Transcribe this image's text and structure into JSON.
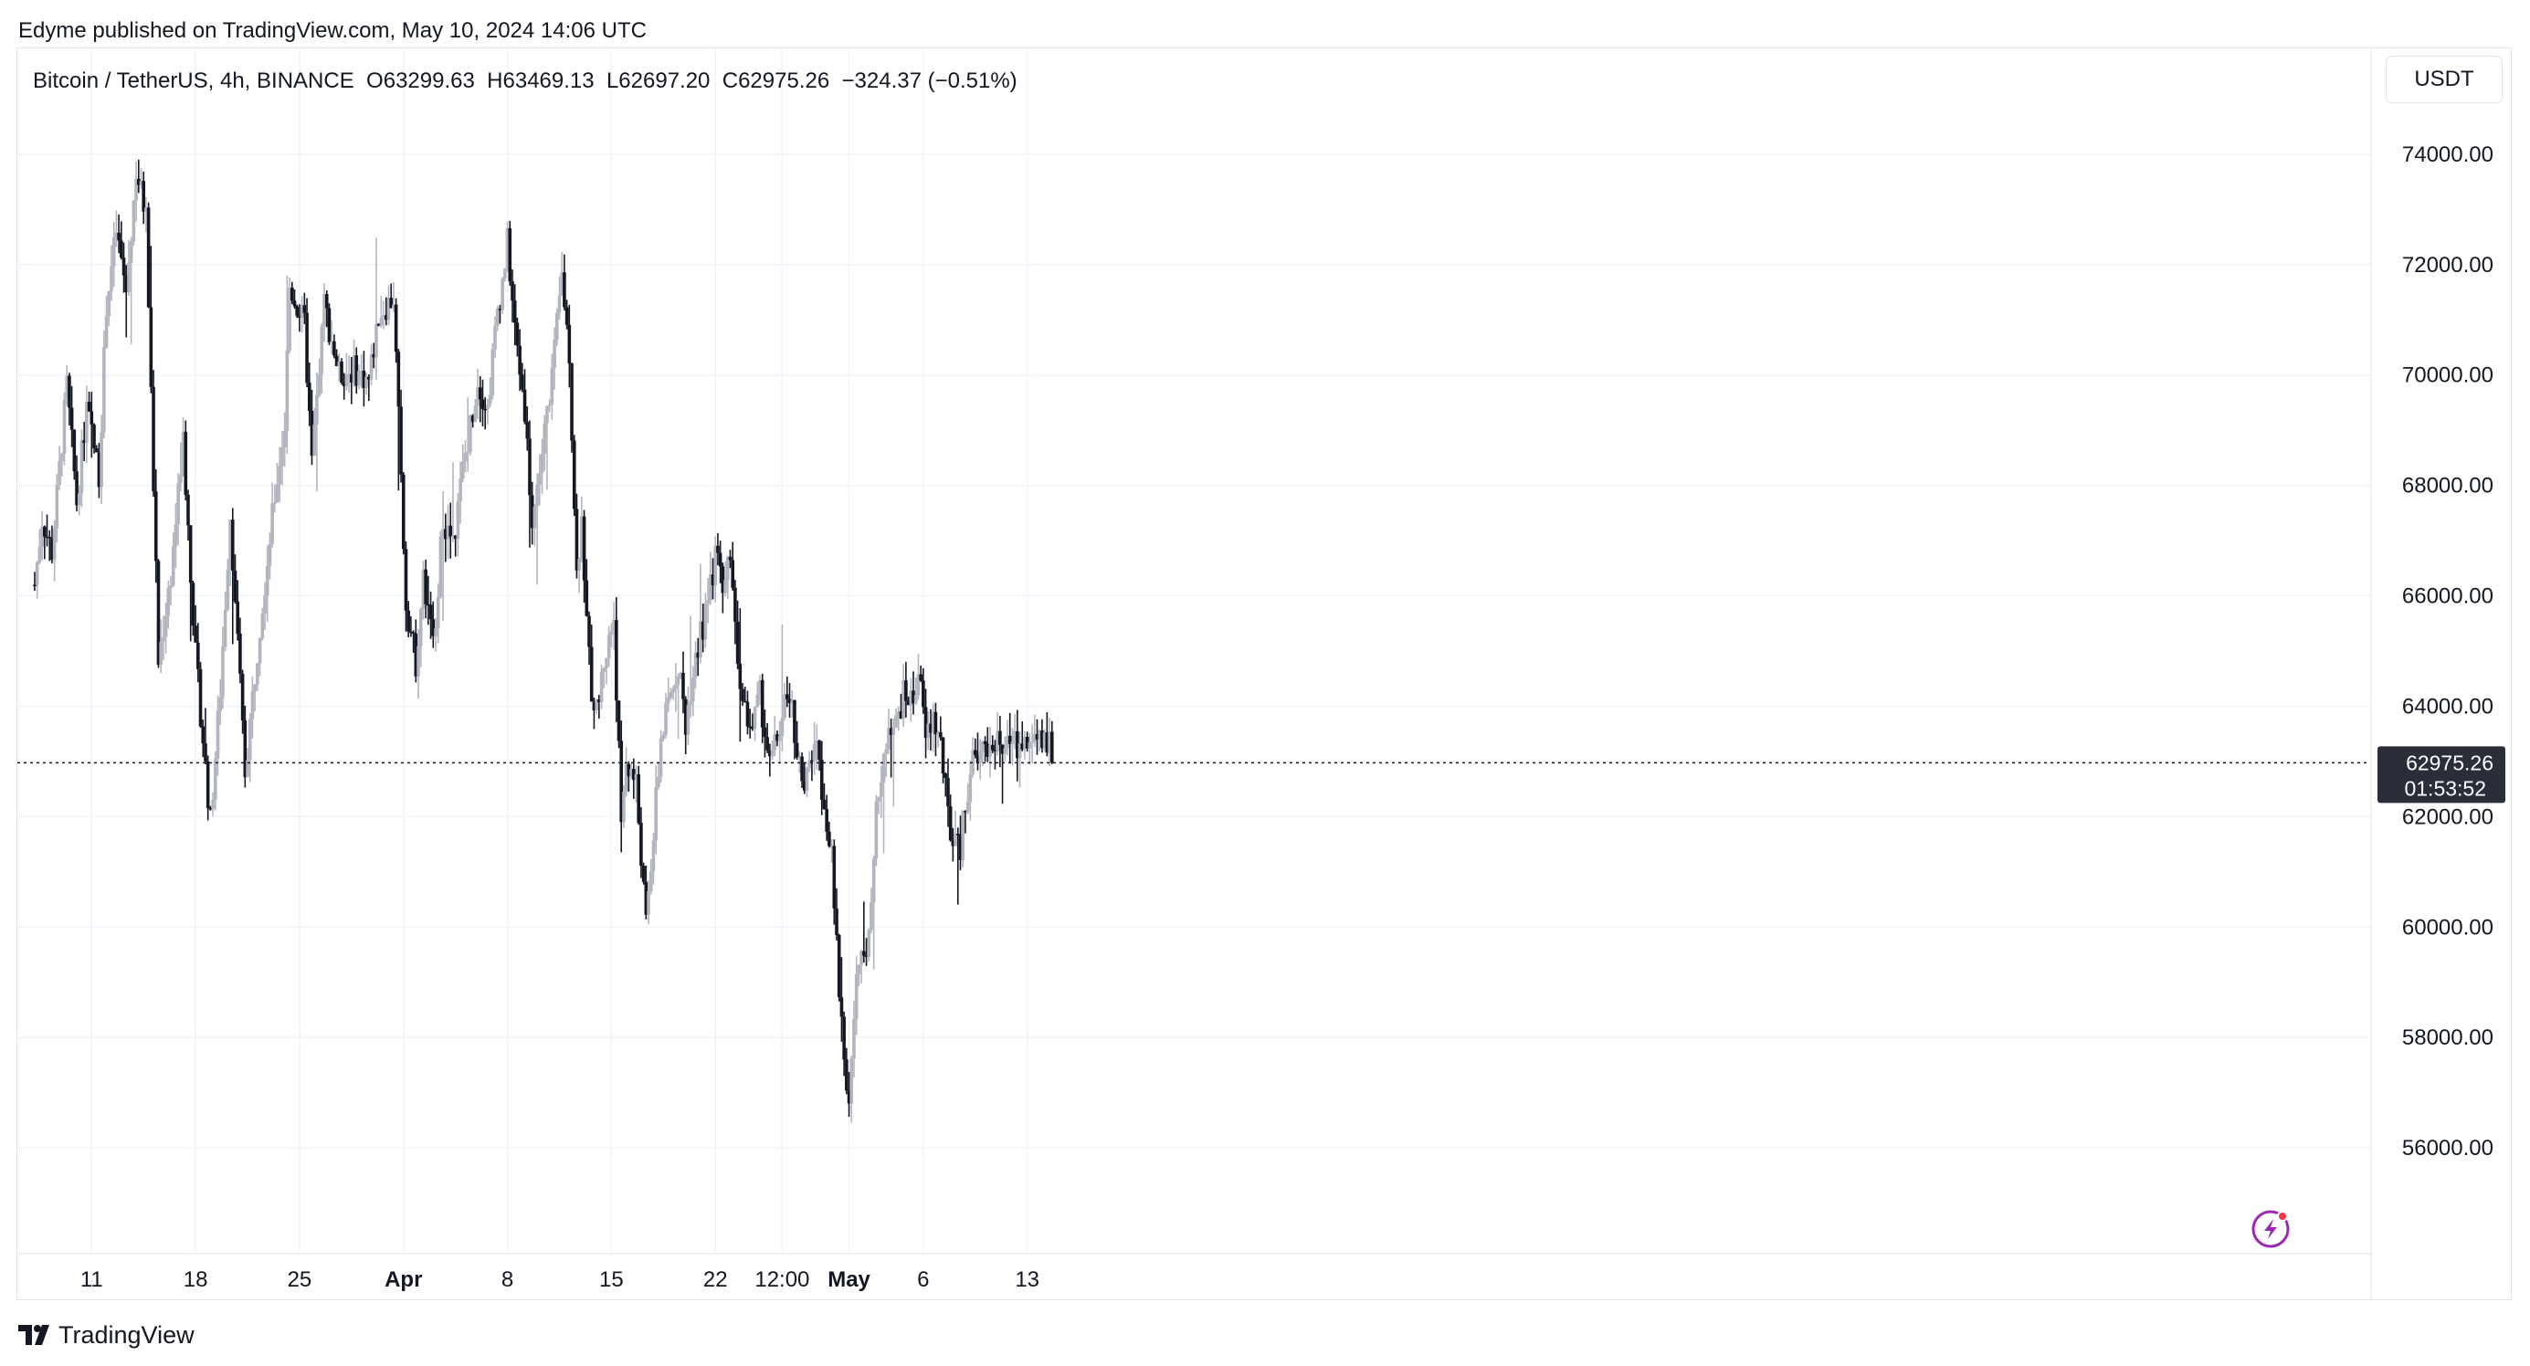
{
  "publisher_line": "Edyme published on TradingView.com, May 10, 2024 14:06 UTC",
  "legend": {
    "symbol": "Bitcoin / TetherUS, 4h, BINANCE",
    "open": "O63299.63",
    "high": "H63469.13",
    "low": "L62697.20",
    "close": "C62975.26",
    "change": "−324.37 (−0.51%)"
  },
  "currency_button": "USDT",
  "last_price": {
    "value": "62975.26",
    "countdown": "01:53:52"
  },
  "footer": {
    "brand": "TradingView"
  },
  "colors": {
    "up": "#b2b5be",
    "down": "#131722",
    "grid": "#f0f3fa",
    "badge": "#2a2e39",
    "accent": "#9c27b0"
  },
  "chart_data": {
    "type": "candlestick",
    "timeframe": "4h",
    "y_ticks": [
      "74000.00",
      "72000.00",
      "70000.00",
      "68000.00",
      "66000.00",
      "64000.00",
      "62000.00",
      "60000.00",
      "58000.00",
      "56000.00"
    ],
    "y_values": [
      74000,
      72000,
      70000,
      68000,
      66000,
      64000,
      62000,
      60000,
      58000,
      56000
    ],
    "ylim": [
      54100,
      75900
    ],
    "x_ticks": [
      {
        "label": "11",
        "bar": 30,
        "bold": false
      },
      {
        "label": "18",
        "bar": 72,
        "bold": false
      },
      {
        "label": "25",
        "bar": 114,
        "bold": false
      },
      {
        "label": "Apr",
        "bar": 156,
        "bold": true
      },
      {
        "label": "8",
        "bar": 198,
        "bold": false
      },
      {
        "label": "15",
        "bar": 240,
        "bold": false
      },
      {
        "label": "22",
        "bar": 282,
        "bold": false
      },
      {
        "label": "12:00",
        "bar": 309,
        "bold": false
      },
      {
        "label": "May",
        "bar": 336,
        "bold": true
      },
      {
        "label": "6",
        "bar": 366,
        "bold": false
      },
      {
        "label": "13",
        "bar": 408,
        "bold": false
      }
    ],
    "x_bar_range": [
      7,
      418
    ],
    "last_price": 62975.26,
    "anchors": [
      [
        7,
        66200
      ],
      [
        10,
        67400
      ],
      [
        14,
        66800
      ],
      [
        20,
        69800
      ],
      [
        24,
        67700
      ],
      [
        28,
        69400
      ],
      [
        33,
        68200
      ],
      [
        36,
        71300
      ],
      [
        40,
        72600
      ],
      [
        44,
        71500
      ],
      [
        48,
        73700
      ],
      [
        52,
        72900
      ],
      [
        57,
        64800
      ],
      [
        62,
        66400
      ],
      [
        67,
        68800
      ],
      [
        72,
        64900
      ],
      [
        78,
        61900
      ],
      [
        82,
        64300
      ],
      [
        86,
        67500
      ],
      [
        92,
        62800
      ],
      [
        98,
        65500
      ],
      [
        104,
        67800
      ],
      [
        108,
        69100
      ],
      [
        110,
        71600
      ],
      [
        116,
        70900
      ],
      [
        119,
        68400
      ],
      [
        124,
        71300
      ],
      [
        130,
        70000
      ],
      [
        136,
        70100
      ],
      [
        142,
        69900
      ],
      [
        146,
        71100
      ],
      [
        152,
        71400
      ],
      [
        157,
        65900
      ],
      [
        161,
        64800
      ],
      [
        164,
        66300
      ],
      [
        168,
        65100
      ],
      [
        172,
        67400
      ],
      [
        176,
        66900
      ],
      [
        180,
        68300
      ],
      [
        186,
        69900
      ],
      [
        190,
        69400
      ],
      [
        194,
        71200
      ],
      [
        196,
        71700
      ],
      [
        198,
        72400
      ],
      [
        201,
        70800
      ],
      [
        205,
        69400
      ],
      [
        208,
        67300
      ],
      [
        212,
        68600
      ],
      [
        217,
        70400
      ],
      [
        220,
        71800
      ],
      [
        223,
        70400
      ],
      [
        226,
        66400
      ],
      [
        228,
        67400
      ],
      [
        230,
        65500
      ],
      [
        232,
        64300
      ],
      [
        234,
        63900
      ],
      [
        237,
        64800
      ],
      [
        241,
        65600
      ],
      [
        244,
        61900
      ],
      [
        246,
        63000
      ],
      [
        250,
        62600
      ],
      [
        254,
        60000
      ],
      [
        257,
        61700
      ],
      [
        260,
        63400
      ],
      [
        263,
        64000
      ],
      [
        267,
        64800
      ],
      [
        270,
        63700
      ],
      [
        274,
        65000
      ],
      [
        278,
        65600
      ],
      [
        282,
        66700
      ],
      [
        286,
        66200
      ],
      [
        288,
        66900
      ],
      [
        290,
        65500
      ],
      [
        293,
        64000
      ],
      [
        297,
        63600
      ],
      [
        300,
        64200
      ],
      [
        304,
        62900
      ],
      [
        308,
        63600
      ],
      [
        312,
        64300
      ],
      [
        315,
        63200
      ],
      [
        318,
        62400
      ],
      [
        322,
        63400
      ],
      [
        326,
        62300
      ],
      [
        329,
        61200
      ],
      [
        331,
        59600
      ],
      [
        334,
        57600
      ],
      [
        336,
        56900
      ],
      [
        339,
        59000
      ],
      [
        342,
        59500
      ],
      [
        345,
        60200
      ],
      [
        347,
        62000
      ],
      [
        350,
        63200
      ],
      [
        354,
        63500
      ],
      [
        358,
        64200
      ],
      [
        362,
        64100
      ],
      [
        364,
        64700
      ],
      [
        367,
        63400
      ],
      [
        370,
        63800
      ],
      [
        373,
        63300
      ],
      [
        376,
        62000
      ],
      [
        378,
        61500
      ],
      [
        381,
        61400
      ],
      [
        383,
        62300
      ],
      [
        386,
        63000
      ],
      [
        388,
        62900
      ],
      [
        390,
        63299
      ]
    ]
  }
}
